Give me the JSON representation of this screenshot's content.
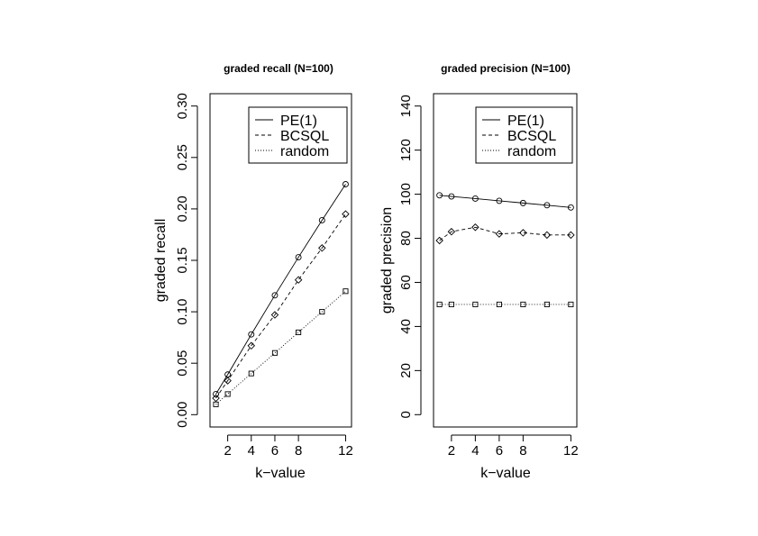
{
  "chart_data": [
    {
      "type": "line",
      "title": "graded recall (N=100)",
      "xlabel": "k−value",
      "ylabel": "graded recall",
      "x": [
        1,
        2,
        4,
        6,
        8,
        10,
        12
      ],
      "xticks": [
        "2",
        "4",
        "6",
        "8",
        "12"
      ],
      "xtick_values": [
        2,
        4,
        6,
        8,
        12
      ],
      "yticks": [
        "0.00",
        "0.05",
        "0.10",
        "0.15",
        "0.20",
        "0.25",
        "0.30"
      ],
      "ytick_values": [
        0,
        0.05,
        0.1,
        0.15,
        0.2,
        0.25,
        0.3
      ],
      "xlim": [
        0.5,
        12.5
      ],
      "ylim": [
        -0.012,
        0.312
      ],
      "series": [
        {
          "name": "PE(1)",
          "linestyle": "solid",
          "marker": "circle",
          "values": [
            0.02,
            0.039,
            0.078,
            0.116,
            0.153,
            0.189,
            0.224
          ]
        },
        {
          "name": "BCSQL",
          "linestyle": "dashed",
          "marker": "diamond",
          "values": [
            0.016,
            0.033,
            0.067,
            0.097,
            0.131,
            0.162,
            0.195
          ]
        },
        {
          "name": "random",
          "linestyle": "dotted",
          "marker": "square",
          "values": [
            0.01,
            0.02,
            0.04,
            0.06,
            0.08,
            0.1,
            0.12
          ]
        }
      ],
      "legend": "top-right",
      "grid": false
    },
    {
      "type": "line",
      "title": "graded precision (N=100)",
      "xlabel": "k−value",
      "ylabel": "graded precision",
      "x": [
        1,
        2,
        4,
        6,
        8,
        10,
        12
      ],
      "xticks": [
        "2",
        "4",
        "6",
        "8",
        "12"
      ],
      "xtick_values": [
        2,
        4,
        6,
        8,
        12
      ],
      "yticks": [
        "0",
        "20",
        "40",
        "60",
        "80",
        "100",
        "120",
        "140"
      ],
      "ytick_values": [
        0,
        20,
        40,
        60,
        80,
        100,
        120,
        140
      ],
      "xlim": [
        0.5,
        12.5
      ],
      "ylim": [
        -5.6,
        145.6
      ],
      "series": [
        {
          "name": "PE(1)",
          "linestyle": "solid",
          "marker": "circle",
          "values": [
            99.5,
            99,
            98,
            97,
            96,
            95,
            94
          ]
        },
        {
          "name": "BCSQL",
          "linestyle": "dashed",
          "marker": "diamond",
          "values": [
            79,
            83,
            85,
            82,
            82.5,
            81.5,
            81.5
          ]
        },
        {
          "name": "random",
          "linestyle": "dotted",
          "marker": "square",
          "values": [
            50,
            50,
            50,
            50,
            50,
            50,
            50
          ]
        }
      ],
      "legend": "top-right",
      "grid": false
    }
  ]
}
